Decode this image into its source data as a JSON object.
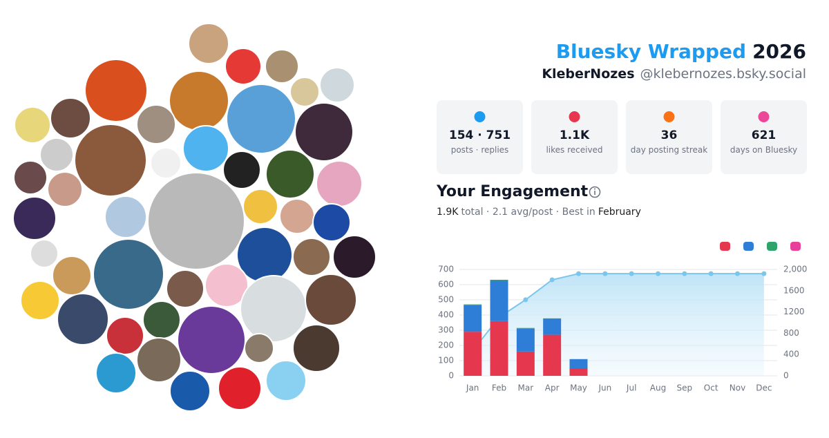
{
  "header": {
    "title": "Bluesky Wrapped",
    "year": "2026",
    "display_name": "KleberNozes",
    "handle": "@klebernozes.bsky.social"
  },
  "stats": [
    {
      "value": "154 · 751",
      "label": "posts · replies"
    },
    {
      "value": "1.1K",
      "label": "likes received"
    },
    {
      "value": "36",
      "label": "day posting streak"
    },
    {
      "value": "621",
      "label": "days on Bluesky"
    }
  ],
  "engagement": {
    "title": "Your Engagement",
    "total": "1.9K",
    "summary": "total · 2.1 avg/post · Best in",
    "best_month": "February"
  },
  "chart_data": {
    "type": "bar",
    "stacked": true,
    "grid": true,
    "categories": [
      "Jan",
      "Feb",
      "Mar",
      "Apr",
      "May",
      "Jun",
      "Jul",
      "Aug",
      "Sep",
      "Oct",
      "Nov",
      "Dec"
    ],
    "series": [
      {
        "color": "#e5384f",
        "values": [
          290,
          360,
          160,
          270,
          50,
          0,
          0,
          0,
          0,
          0,
          0,
          0
        ]
      },
      {
        "color": "#2e7dd6",
        "values": [
          175,
          265,
          150,
          105,
          60,
          0,
          0,
          0,
          0,
          0,
          0,
          0
        ]
      },
      {
        "color": "#2fa46a",
        "values": [
          5,
          7,
          5,
          3,
          0,
          0,
          0,
          0,
          0,
          0,
          0,
          0
        ]
      },
      {
        "color": "#e8409a",
        "values": [
          0,
          0,
          0,
          0,
          0,
          0,
          0,
          0,
          0,
          0,
          0,
          0
        ]
      },
      {
        "type": "line",
        "axis": "y2",
        "color": "#7cc6ec",
        "values": [
          470,
          1100,
          1430,
          1805,
          1920,
          1920,
          1920,
          1920,
          1920,
          1920,
          1920,
          1920
        ]
      }
    ],
    "ylim": [
      0,
      700
    ],
    "yticks": [
      0,
      100,
      200,
      300,
      400,
      500,
      600,
      700
    ],
    "y2lim": [
      0,
      2000
    ],
    "y2ticks": [
      0,
      400,
      800,
      1200,
      1600,
      {
        "value": 2000,
        "label": "2,000"
      }
    ]
  }
}
